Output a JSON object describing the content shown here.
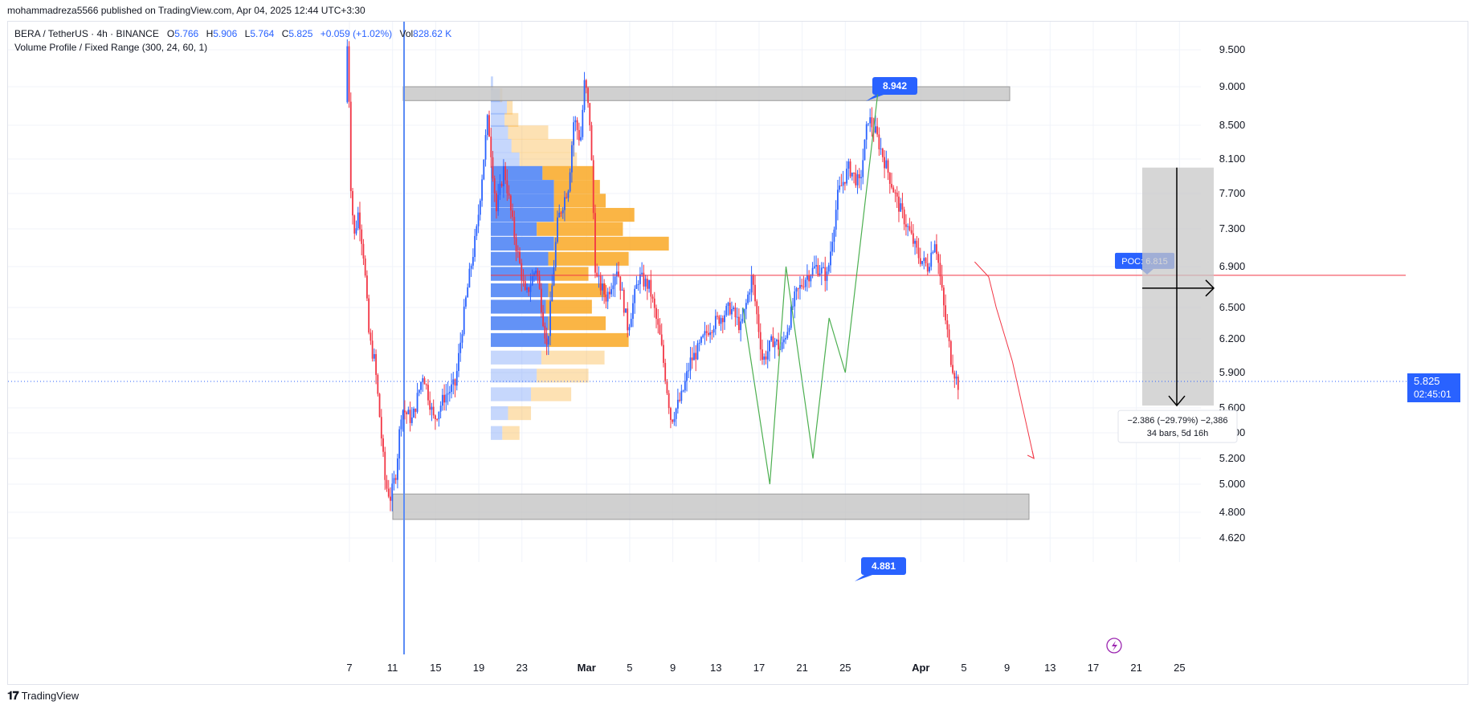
{
  "header": {
    "publish_line": "mohammadreza5566 published on TradingView.com, Apr 04, 2025 12:44 UTC+3:30"
  },
  "legend": {
    "symbol": "BERA / TetherUS · 4h · BINANCE",
    "open_label": "O",
    "open": "5.766",
    "high_label": "H",
    "high": "5.906",
    "low_label": "L",
    "low": "5.764",
    "close_label": "C",
    "close": "5.825",
    "change": "+0.059 (+1.02%)",
    "vol_label": "Vol",
    "vol": "828.62 K",
    "indicator": "Volume Profile / Fixed Range (300, 24, 60, 1)"
  },
  "footer": {
    "brand": "TradingView"
  },
  "colors": {
    "up": "#2962ff",
    "down": "#f23645",
    "grid": "#f0f3fa",
    "zone": "#c8c8c8",
    "vp_blue": "#5b8cf5",
    "vp_orange": "#f9a825",
    "poc": "#f23645",
    "label_blue": "#2962ff",
    "projection": "#4caf50"
  },
  "chart_data": {
    "type": "candlestick",
    "title": "",
    "symbol": "BERA/USDT",
    "timeframe": "4h",
    "y_axis": {
      "ticks": [
        4.62,
        4.8,
        5.0,
        5.2,
        5.4,
        5.6,
        5.9,
        6.2,
        6.5,
        6.9,
        7.3,
        7.7,
        8.1,
        8.5,
        9.0,
        9.5
      ],
      "tick_labels": [
        "4.620",
        "4.800",
        "5.000",
        "5.200",
        "5.400",
        "5.600",
        "5.900",
        "6.200",
        "6.500",
        "6.900",
        "7.300",
        "7.700",
        "8.100",
        "8.500",
        "9.000",
        "9.500"
      ]
    },
    "x_axis": {
      "tick_labels": [
        "7",
        "11",
        "15",
        "19",
        "23",
        "Mar",
        "5",
        "9",
        "13",
        "17",
        "21",
        "25",
        "Apr",
        "5",
        "9",
        "13",
        "17",
        "21",
        "25"
      ],
      "tick_days": [
        7,
        11,
        15,
        19,
        23,
        29,
        33,
        37,
        41,
        45,
        49,
        53,
        60,
        64,
        68,
        72,
        76,
        80,
        84
      ],
      "bold": [
        "Mar",
        "Apr"
      ]
    },
    "price_path_days": [
      6.8,
      7.0,
      7.3,
      7.6,
      8.0,
      8.5,
      9.0,
      9.5,
      10.0,
      10.5,
      11.0,
      11.5,
      12.0,
      13.0,
      14.0,
      15.0,
      16.0,
      17.0,
      18.0,
      19.0,
      20.0,
      20.8,
      21.5,
      22.5,
      23.5,
      24.5,
      25.5,
      26.5,
      27.5,
      28.0,
      28.6,
      29.0,
      29.5,
      30.0,
      31.0,
      32.0,
      33.0,
      34.0,
      35.0,
      36.0,
      37.0,
      38.0,
      38.8,
      39.5,
      40.5,
      41.5,
      42.5,
      43.5,
      44.5,
      45.5,
      46.5,
      47.2,
      47.8,
      48.5,
      49.5,
      50.5,
      51.5,
      52.5,
      53.5,
      54.5,
      55.3,
      56.0,
      57.0,
      58.0,
      59.0,
      60.0,
      60.8,
      61.5,
      62.3,
      63.0,
      63.6
    ],
    "price_path": [
      8.8,
      9.7,
      7.8,
      7.2,
      7.5,
      7.0,
      6.2,
      6.0,
      5.5,
      5.0,
      4.9,
      5.1,
      5.6,
      5.5,
      5.9,
      5.5,
      5.7,
      5.8,
      6.6,
      7.3,
      8.6,
      7.5,
      8.0,
      7.2,
      6.6,
      6.9,
      6.1,
      7.4,
      7.8,
      8.6,
      8.3,
      9.1,
      8.5,
      6.8,
      6.6,
      6.9,
      6.3,
      6.8,
      6.7,
      6.2,
      5.5,
      5.7,
      6.0,
      6.1,
      6.3,
      6.4,
      6.5,
      6.3,
      6.8,
      6.0,
      6.2,
      6.1,
      6.3,
      6.6,
      6.8,
      6.9,
      6.8,
      7.7,
      8.0,
      7.8,
      8.6,
      8.4,
      8.0,
      7.6,
      7.3,
      7.0,
      6.9,
      7.2,
      6.5,
      6.0,
      5.8
    ],
    "current_price": 5.825,
    "countdown": "02:45:01",
    "volume_profile": {
      "price_low": 5.3,
      "price_high": 9.15,
      "rows": 24,
      "poc": 6.815,
      "poc_label": "POC: 6.815",
      "up_volume": [
        0.02,
        0.08,
        0.14,
        0.12,
        0.15,
        0.18,
        0.25,
        0.45,
        0.55,
        0.55,
        0.55,
        0.4,
        0.55,
        0.5,
        0.55,
        0.5,
        0.48,
        0.5,
        0.5,
        0.44,
        0.4,
        0.35,
        0.15,
        0.1
      ],
      "down_volume": [
        0.0,
        0.02,
        0.05,
        0.12,
        0.35,
        0.55,
        0.5,
        0.45,
        0.4,
        0.45,
        0.7,
        0.75,
        1.0,
        0.7,
        0.3,
        0.5,
        0.4,
        0.5,
        0.7,
        0.55,
        0.45,
        0.35,
        0.2,
        0.15
      ],
      "row_prices_note": ""
    },
    "zones": [
      {
        "top": 9.0,
        "bottom": 8.82,
        "label": "8.942"
      },
      {
        "top": 4.93,
        "bottom": 4.75,
        "label": "4.881"
      }
    ],
    "measure": {
      "from": 8.0,
      "to": 5.62,
      "label_line1": "−2.386 (−29.79%) −2,386",
      "label_line2": "34 bars, 5d 16h"
    },
    "projection_path_days": [
      43.5,
      46.0,
      47.5,
      50.0,
      51.5,
      53.0,
      56.0
    ],
    "projection_path": [
      6.5,
      5.0,
      6.9,
      5.2,
      6.4,
      5.9,
      8.9
    ],
    "red_projection_days": [
      65.0,
      66.3,
      67.0,
      68.5,
      70.5
    ],
    "red_projection": [
      6.95,
      6.8,
      6.5,
      6.0,
      5.2
    ],
    "legend": []
  }
}
